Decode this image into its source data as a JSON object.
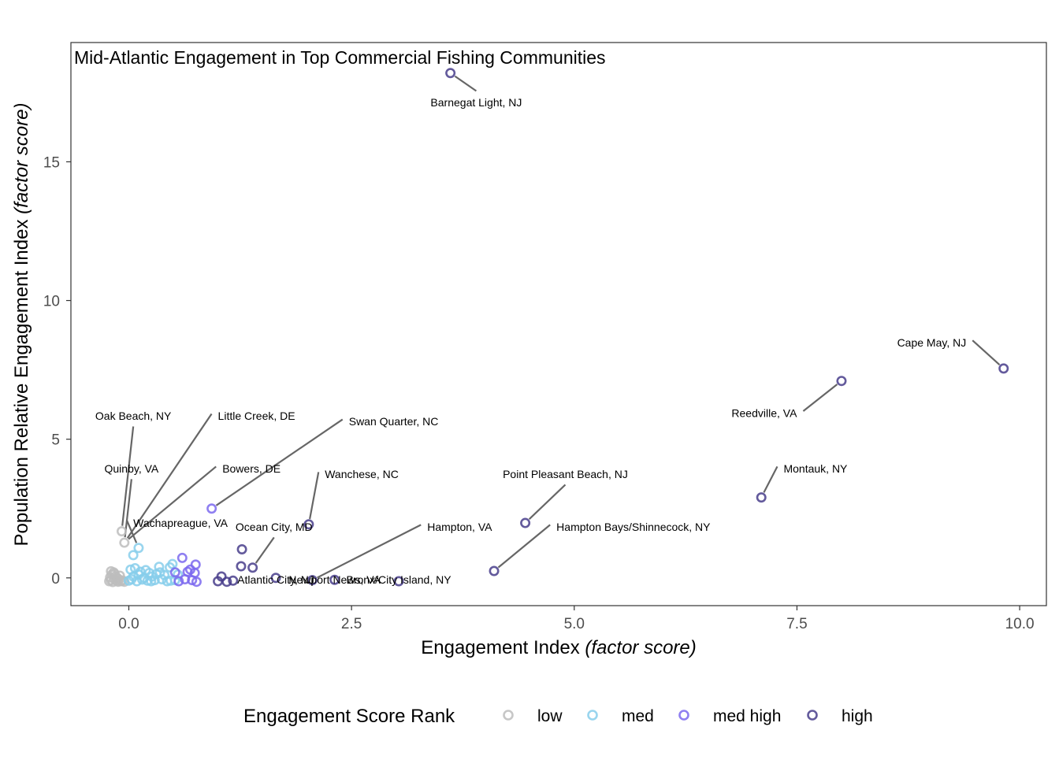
{
  "chart_data": {
    "type": "scatter",
    "title": "Mid-Atlantic Engagement in Top Commercial Fishing Communities",
    "xlabel": "Engagement Index",
    "xlabel_italic": "(factor score)",
    "ylabel": "Population Relative Engagement Index",
    "ylabel_italic": "(factor score)",
    "xlim": [
      -0.65,
      10.3
    ],
    "ylim": [
      -1.0,
      19.3
    ],
    "xticks": [
      0.0,
      2.5,
      5.0,
      7.5,
      10.0
    ],
    "xtick_labels": [
      "0.0",
      "2.5",
      "5.0",
      "7.5",
      "10.0"
    ],
    "yticks": [
      0,
      5,
      10,
      15
    ],
    "ytick_labels": [
      "0",
      "5",
      "10",
      "15"
    ],
    "grid": false,
    "legend": {
      "title": "Engagement Score Rank",
      "placement": "bottom",
      "items": [
        {
          "name": "low",
          "color": "#bdbdbd"
        },
        {
          "name": "med",
          "color": "#87ceeb"
        },
        {
          "name": "med high",
          "color": "#7b68ee"
        },
        {
          "name": "high",
          "color": "#483d8b"
        }
      ]
    },
    "series": [
      {
        "name": "low",
        "color": "#bdbdbd",
        "points": [
          {
            "x": -0.22,
            "y": -0.12
          },
          {
            "x": -0.2,
            "y": -0.08
          },
          {
            "x": -0.18,
            "y": -0.15
          },
          {
            "x": -0.16,
            "y": -0.05
          },
          {
            "x": -0.14,
            "y": -0.1
          },
          {
            "x": -0.12,
            "y": -0.14
          },
          {
            "x": -0.21,
            "y": 0.02
          },
          {
            "x": -0.19,
            "y": 0.12
          },
          {
            "x": -0.17,
            "y": 0.2
          },
          {
            "x": -0.15,
            "y": 0.06
          },
          {
            "x": -0.13,
            "y": 0.0
          },
          {
            "x": -0.11,
            "y": -0.06
          },
          {
            "x": -0.09,
            "y": -0.12
          },
          {
            "x": -0.07,
            "y": -0.09
          },
          {
            "x": -0.05,
            "y": -0.14
          },
          {
            "x": -0.2,
            "y": 0.24
          },
          {
            "x": -0.16,
            "y": 0.15
          },
          {
            "x": -0.1,
            "y": 0.08
          },
          {
            "x": -0.08,
            "y": 1.68
          },
          {
            "x": -0.05,
            "y": 1.27
          }
        ]
      },
      {
        "name": "med",
        "color": "#87ceeb",
        "points": [
          {
            "x": 0.0,
            "y": -0.1
          },
          {
            "x": 0.03,
            "y": -0.05
          },
          {
            "x": 0.05,
            "y": 0.05
          },
          {
            "x": 0.07,
            "y": 0.35
          },
          {
            "x": 0.09,
            "y": -0.12
          },
          {
            "x": 0.11,
            "y": 0.12
          },
          {
            "x": 0.13,
            "y": 0.22
          },
          {
            "x": 0.15,
            "y": -0.06
          },
          {
            "x": 0.17,
            "y": 0.0
          },
          {
            "x": 0.19,
            "y": 0.28
          },
          {
            "x": 0.21,
            "y": -0.1
          },
          {
            "x": 0.23,
            "y": 0.18
          },
          {
            "x": 0.26,
            "y": 0.05
          },
          {
            "x": 0.29,
            "y": -0.08
          },
          {
            "x": 0.31,
            "y": 0.14
          },
          {
            "x": 0.34,
            "y": 0.4
          },
          {
            "x": 0.37,
            "y": -0.05
          },
          {
            "x": 0.4,
            "y": 0.1
          },
          {
            "x": 0.43,
            "y": -0.12
          },
          {
            "x": 0.46,
            "y": 0.38
          },
          {
            "x": 0.49,
            "y": 0.5
          },
          {
            "x": 0.52,
            "y": -0.08
          },
          {
            "x": 0.55,
            "y": 0.12
          },
          {
            "x": 0.47,
            "y": -0.1
          },
          {
            "x": 0.05,
            "y": 0.82
          },
          {
            "x": 0.11,
            "y": 1.08
          },
          {
            "x": 0.02,
            "y": 0.3
          },
          {
            "x": 0.25,
            "y": -0.12
          },
          {
            "x": 0.35,
            "y": 0.2
          }
        ]
      },
      {
        "name": "med high",
        "color": "#7b68ee",
        "points": [
          {
            "x": 0.52,
            "y": 0.2
          },
          {
            "x": 0.56,
            "y": -0.12
          },
          {
            "x": 0.6,
            "y": 0.72
          },
          {
            "x": 0.63,
            "y": -0.05
          },
          {
            "x": 0.66,
            "y": 0.22
          },
          {
            "x": 0.69,
            "y": 0.3
          },
          {
            "x": 0.71,
            "y": -0.08
          },
          {
            "x": 0.74,
            "y": 0.18
          },
          {
            "x": 0.76,
            "y": -0.14
          },
          {
            "x": 0.75,
            "y": 0.48
          },
          {
            "x": 0.93,
            "y": 2.5
          }
        ]
      },
      {
        "name": "high",
        "color": "#483d8b",
        "points": [
          {
            "x": 1.0,
            "y": -0.12
          },
          {
            "x": 1.04,
            "y": 0.05
          },
          {
            "x": 1.1,
            "y": -0.14
          },
          {
            "x": 1.17,
            "y": -0.1
          },
          {
            "x": 1.26,
            "y": 0.42
          },
          {
            "x": 1.27,
            "y": 1.03
          },
          {
            "x": 1.39,
            "y": 0.37
          },
          {
            "x": 1.65,
            "y": 0.0
          },
          {
            "x": 2.02,
            "y": 1.93
          },
          {
            "x": 2.06,
            "y": -0.08
          },
          {
            "x": 2.31,
            "y": -0.07
          },
          {
            "x": 3.03,
            "y": -0.12
          },
          {
            "x": 3.61,
            "y": 18.2
          },
          {
            "x": 4.1,
            "y": 0.25
          },
          {
            "x": 4.45,
            "y": 1.98
          },
          {
            "x": 7.1,
            "y": 2.9
          },
          {
            "x": 8.0,
            "y": 7.1
          },
          {
            "x": 9.82,
            "y": 7.55
          }
        ]
      }
    ],
    "annotations": [
      {
        "label": "Barnegat Light, NJ",
        "x": 3.61,
        "y": 18.2,
        "lx": 3.9,
        "ly": 17.1,
        "anchor": "center"
      },
      {
        "label": "Cape May, NJ",
        "x": 9.82,
        "y": 7.55,
        "lx": 9.4,
        "ly": 8.45,
        "anchor": "end"
      },
      {
        "label": "Reedville, VA",
        "x": 8.0,
        "y": 7.1,
        "lx": 7.5,
        "ly": 5.9,
        "anchor": "end"
      },
      {
        "label": "Montauk, NY",
        "x": 7.1,
        "y": 2.9,
        "lx": 7.35,
        "ly": 3.9,
        "anchor": "start"
      },
      {
        "label": "Point Pleasant Beach, NJ",
        "x": 4.45,
        "y": 1.98,
        "lx": 4.9,
        "ly": 3.7,
        "anchor": "center"
      },
      {
        "label": "Hampton Bays/Shinnecock, NY",
        "x": 4.1,
        "y": 0.25,
        "lx": 4.8,
        "ly": 1.8,
        "anchor": "start"
      },
      {
        "label": "Bronx/City Island, NY",
        "x": 3.03,
        "y": -0.12,
        "lx": 3.03,
        "ly": -0.1,
        "anchor": "center"
      },
      {
        "label": "Newport News, VA",
        "x": 2.31,
        "y": -0.07,
        "lx": 2.31,
        "ly": -0.1,
        "anchor": "center"
      },
      {
        "label": "Atlantic City, NJ",
        "x": 1.65,
        "y": 0.0,
        "lx": 1.65,
        "ly": -0.1,
        "anchor": "center"
      },
      {
        "label": "Hampton, VA",
        "x": 2.06,
        "y": -0.08,
        "lx": 3.35,
        "ly": 1.8,
        "anchor": "start"
      },
      {
        "label": "Ocean City, MD",
        "x": 1.39,
        "y": 0.37,
        "lx": 1.63,
        "ly": 1.8,
        "anchor": "center"
      },
      {
        "label": "Wanchese, NC",
        "x": 2.02,
        "y": 1.93,
        "lx": 2.2,
        "ly": 3.7,
        "anchor": "start"
      },
      {
        "label": "Swan Quarter, NC",
        "x": 0.93,
        "y": 2.5,
        "lx": 2.47,
        "ly": 5.6,
        "anchor": "start"
      },
      {
        "label": "Bowers, DE",
        "x": -0.05,
        "y": 1.27,
        "lx": 1.05,
        "ly": 3.9,
        "anchor": "start"
      },
      {
        "label": "Little Creek, DE",
        "x": -0.05,
        "y": 1.27,
        "lx": 1.0,
        "ly": 5.8,
        "anchor": "start"
      },
      {
        "label": "Oak Beach, NY",
        "x": -0.08,
        "y": 1.68,
        "lx": 0.05,
        "ly": 5.8,
        "anchor": "center"
      },
      {
        "label": "Quinby, VA",
        "x": -0.05,
        "y": 1.27,
        "lx": 0.03,
        "ly": 3.9,
        "anchor": "center"
      },
      {
        "label": "Wachapreague, VA",
        "x": 0.11,
        "y": 1.08,
        "lx": 0.05,
        "ly": 1.95,
        "anchor": "start"
      }
    ]
  }
}
